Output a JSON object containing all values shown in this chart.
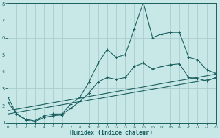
{
  "xlabel": "Humidex (Indice chaleur)",
  "bg_color": "#c8e8e8",
  "grid_color": "#aacccc",
  "line_color": "#1a5f5f",
  "xlim": [
    0,
    23
  ],
  "ylim": [
    1,
    8
  ],
  "xticks": [
    0,
    1,
    2,
    3,
    4,
    5,
    6,
    7,
    8,
    9,
    10,
    11,
    12,
    13,
    14,
    15,
    16,
    17,
    18,
    19,
    20,
    21,
    22,
    23
  ],
  "yticks": [
    1,
    2,
    3,
    4,
    5,
    6,
    7,
    8
  ],
  "line1_x": [
    0,
    1,
    2,
    3,
    4,
    5,
    6,
    7,
    8,
    9,
    10,
    11,
    12,
    13,
    14,
    15,
    16,
    17,
    18,
    19,
    20,
    21,
    22,
    23
  ],
  "line1_y": [
    2.5,
    1.5,
    1.2,
    1.1,
    1.4,
    1.5,
    1.5,
    2.1,
    2.5,
    3.4,
    4.5,
    5.3,
    4.85,
    5.0,
    6.5,
    8.1,
    6.0,
    6.2,
    6.3,
    6.3,
    4.85,
    4.7,
    4.1,
    3.9
  ],
  "line2_x": [
    0,
    1,
    2,
    3,
    4,
    5,
    6,
    7,
    8,
    9,
    10,
    11,
    12,
    13,
    14,
    15,
    16,
    17,
    18,
    19,
    20,
    21,
    22,
    23
  ],
  "line2_y": [
    2.2,
    1.5,
    1.15,
    1.05,
    1.3,
    1.4,
    1.45,
    1.85,
    2.25,
    2.75,
    3.4,
    3.65,
    3.55,
    3.65,
    4.3,
    4.5,
    4.15,
    4.3,
    4.4,
    4.45,
    3.65,
    3.6,
    3.45,
    3.65
  ],
  "line3_x": [
    0,
    23
  ],
  "line3_y": [
    1.7,
    3.85
  ],
  "line4_x": [
    0,
    23
  ],
  "line4_y": [
    1.5,
    3.6
  ]
}
